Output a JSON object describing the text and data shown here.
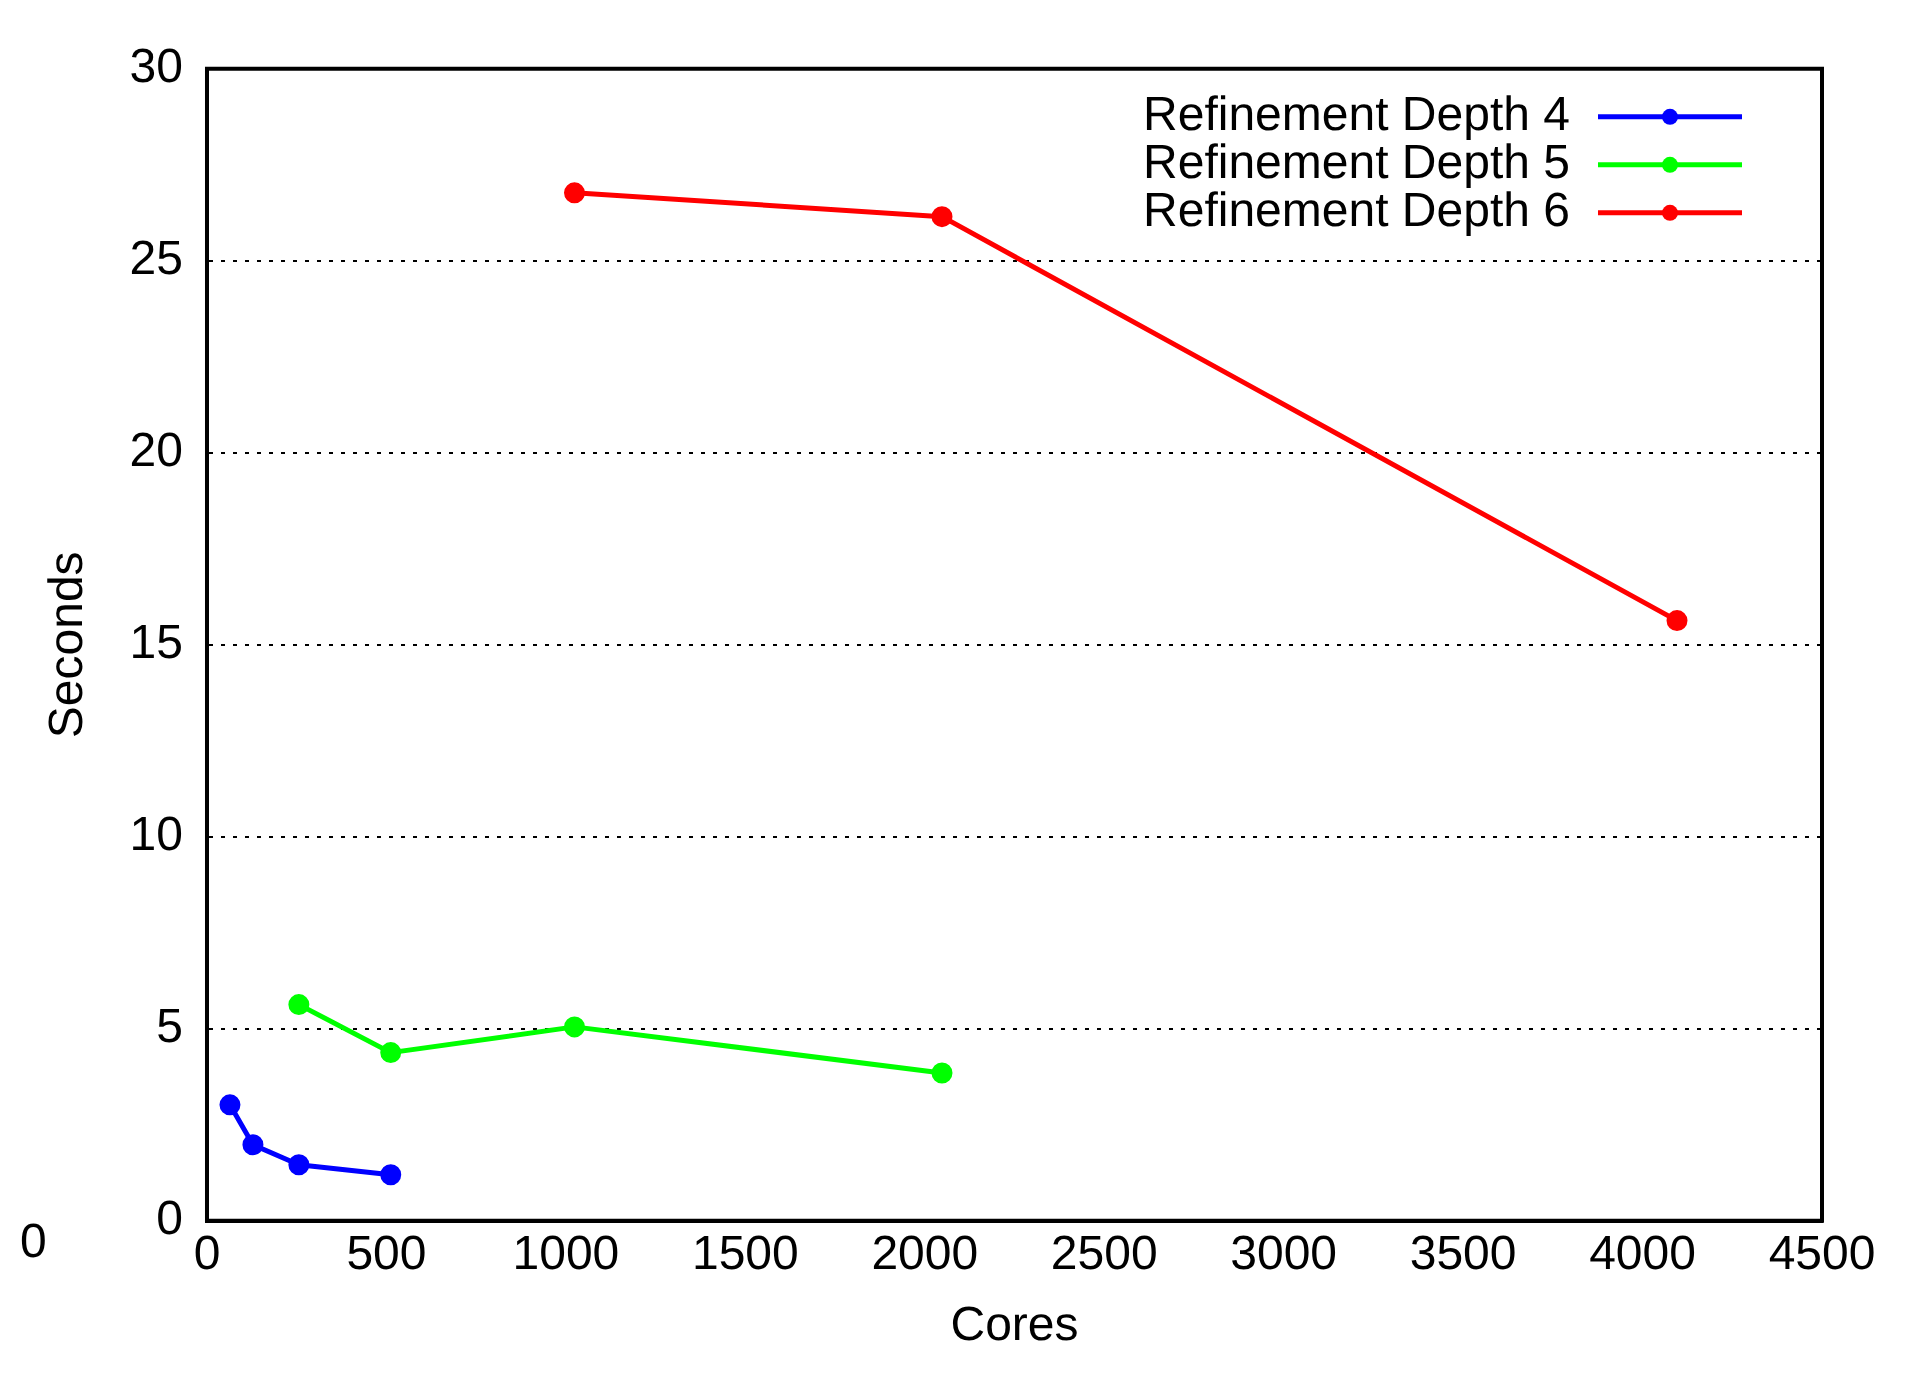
{
  "chart_data": {
    "type": "line",
    "xlabel": "Cores",
    "ylabel": "Seconds",
    "xlim": [
      0,
      4500
    ],
    "xticks": [
      0,
      500,
      1000,
      1500,
      2000,
      2500,
      3000,
      3500,
      4000,
      4500
    ],
    "ylim": [
      0,
      30
    ],
    "yticks": [
      0,
      5,
      10,
      15,
      20,
      25,
      30
    ],
    "grid": "y",
    "legend": "top right",
    "marker": "circle",
    "line_style": "solid",
    "annotations": [
      "0"
    ],
    "series": [
      {
        "name": "Refinement Depth 4",
        "color": "#0000ff",
        "x": [
          64,
          128,
          256,
          512
        ],
        "values": [
          3.02,
          1.98,
          1.46,
          1.2
        ]
      },
      {
        "name": "Refinement Depth 5",
        "color": "#00ff00",
        "x": [
          256,
          512,
          1024,
          2048
        ],
        "values": [
          5.63,
          4.38,
          5.05,
          3.85
        ]
      },
      {
        "name": "Refinement Depth 6",
        "color": "#ff0000",
        "x": [
          1024,
          2048,
          4096
        ],
        "values": [
          26.77,
          26.15,
          15.63
        ]
      }
    ]
  }
}
